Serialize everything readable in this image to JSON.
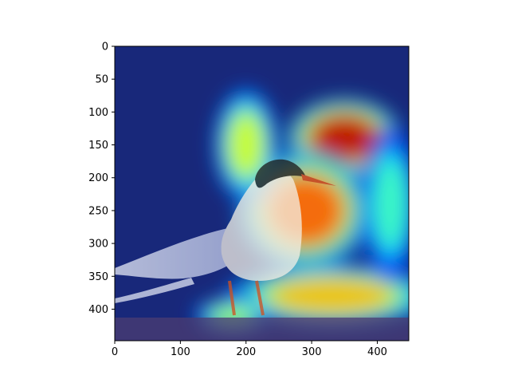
{
  "chart_data": {
    "type": "heatmap",
    "title": "",
    "xlabel": "",
    "ylabel": "",
    "xlim": [
      0,
      448
    ],
    "ylim": [
      448,
      0
    ],
    "x_ticks": [
      0,
      100,
      200,
      300,
      400
    ],
    "y_ticks": [
      0,
      50,
      100,
      150,
      200,
      250,
      300,
      350,
      400
    ],
    "x_tick_labels": [
      "0",
      "100",
      "200",
      "300",
      "400"
    ],
    "y_tick_labels": [
      "0",
      "50",
      "100",
      "150",
      "200",
      "250",
      "300",
      "350",
      "400"
    ],
    "image_content": "bird",
    "colormap": "jet",
    "grid": false,
    "heat_regions": [
      {
        "cx": 350,
        "cy": 140,
        "rx": 80,
        "ry": 55,
        "intensity": 0.95
      },
      {
        "cx": 290,
        "cy": 250,
        "rx": 95,
        "ry": 85,
        "intensity": 0.8
      },
      {
        "cx": 330,
        "cy": 380,
        "rx": 150,
        "ry": 45,
        "intensity": 0.7
      },
      {
        "cx": 200,
        "cy": 150,
        "rx": 45,
        "ry": 80,
        "intensity": 0.6
      },
      {
        "cx": 420,
        "cy": 240,
        "rx": 40,
        "ry": 110,
        "intensity": 0.45
      },
      {
        "cx": 180,
        "cy": 410,
        "rx": 55,
        "ry": 25,
        "intensity": 0.55
      }
    ]
  }
}
